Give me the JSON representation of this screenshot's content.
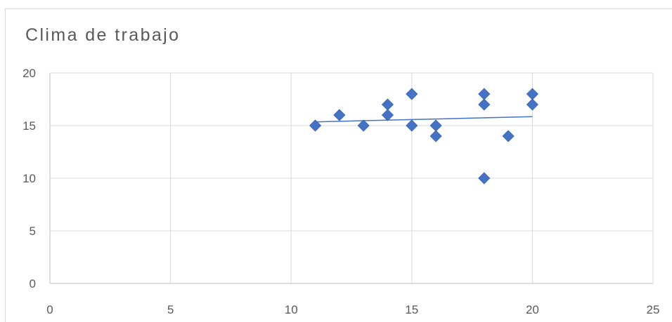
{
  "chart_data": {
    "type": "scatter",
    "title": "Clima de trabajo",
    "xlabel": "",
    "ylabel": "",
    "xlim": [
      0,
      25
    ],
    "ylim": [
      0,
      20
    ],
    "x_ticks": [
      "0",
      "5",
      "10",
      "15",
      "20",
      "25"
    ],
    "y_ticks": [
      "0",
      "5",
      "10",
      "15",
      "20"
    ],
    "grid": true,
    "legend": "none",
    "marker": "diamond",
    "series": [
      {
        "points": [
          {
            "x": 11,
            "y": 15
          },
          {
            "x": 12,
            "y": 16
          },
          {
            "x": 13,
            "y": 15
          },
          {
            "x": 14,
            "y": 17
          },
          {
            "x": 14,
            "y": 16
          },
          {
            "x": 15,
            "y": 18
          },
          {
            "x": 15,
            "y": 15
          },
          {
            "x": 16,
            "y": 15
          },
          {
            "x": 16,
            "y": 14
          },
          {
            "x": 18,
            "y": 18
          },
          {
            "x": 18,
            "y": 17
          },
          {
            "x": 18,
            "y": 10
          },
          {
            "x": 19,
            "y": 14
          },
          {
            "x": 20,
            "y": 18
          },
          {
            "x": 20,
            "y": 17
          }
        ],
        "color": "#4472c4"
      }
    ],
    "trendline": {
      "type": "linear",
      "from": {
        "x": 11,
        "y": 15.35
      },
      "to": {
        "x": 20,
        "y": 15.85
      },
      "color": "#4472c4"
    },
    "colors": {
      "grid": "#d9d9d9",
      "axis": "#bfbfbf",
      "text": "#595959"
    }
  }
}
